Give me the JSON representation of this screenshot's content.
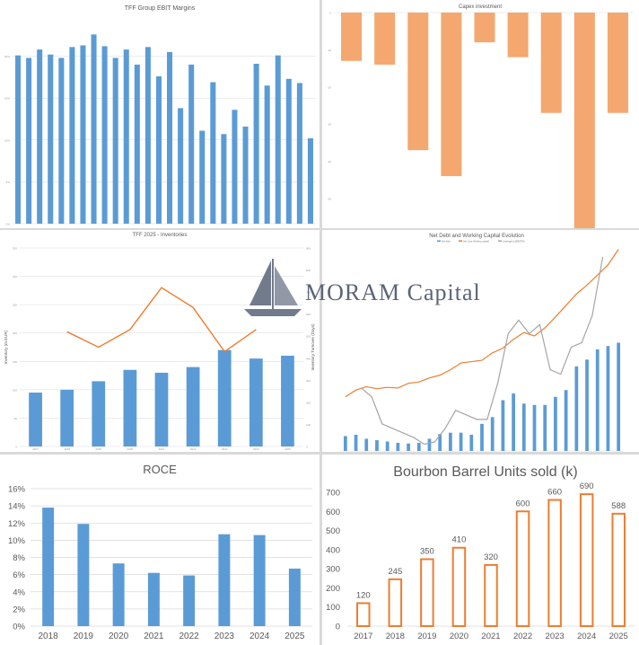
{
  "colors": {
    "blue": "#5b9bd5",
    "orange": "#ed7d31",
    "gray": "#a5a5a5",
    "lightOrange": "#f4a76f",
    "grid": "#d9d9d9",
    "axis": "#595959",
    "watermark": "#5a6478"
  },
  "watermark": {
    "text": "MORAM Capital"
  },
  "chart_data": [
    {
      "id": "ebit",
      "type": "bar",
      "title": "TFF Group EBIT Margins",
      "ylim": [
        0,
        25
      ],
      "yticks": [
        0,
        5,
        10,
        15,
        20
      ],
      "values": [
        20.1,
        19.8,
        20.8,
        20.2,
        19.8,
        21.1,
        21.3,
        22.6,
        21.2,
        19.8,
        20.8,
        19.0,
        21.1,
        17.6,
        20.5,
        13.8,
        19.0,
        11.1,
        16.9,
        10.7,
        13.6,
        11.6,
        19.1,
        16.5,
        20.1,
        17.3,
        16.8,
        10.2
      ]
    },
    {
      "id": "capex",
      "type": "bar",
      "title": "Capex investment",
      "ylim": [
        -58,
        0
      ],
      "yticks": [
        0,
        -10,
        -20,
        -30,
        -40,
        -50
      ],
      "values": [
        -13,
        -14,
        -37,
        -44,
        -8,
        -12,
        -27,
        -58,
        -27
      ]
    },
    {
      "id": "inventories",
      "type": "bar",
      "title": "TFF 2025 - Inventories",
      "ylabel": "Inventory (m EUR)",
      "y2label": "Inventory Turnover (Days)",
      "categories": [
        "2017",
        "2018",
        "2019",
        "2020",
        "2021",
        "2022",
        "2023",
        "2024",
        "2025"
      ],
      "ylim": [
        0,
        350
      ],
      "yticks": [
        0,
        50,
        100,
        150,
        200,
        250,
        300,
        350
      ],
      "y2lim": [
        0,
        900
      ],
      "y2ticks": [
        0,
        100,
        200,
        300,
        400,
        500,
        600,
        700,
        800,
        900
      ],
      "series": [
        {
          "values": [
            95,
            100,
            115,
            135,
            130,
            140,
            170,
            155,
            160
          ]
        },
        {
          "values": [
            null,
            520,
            450,
            530,
            720,
            630,
            430,
            530,
            null
          ]
        }
      ]
    },
    {
      "id": "netdebt",
      "type": "bar",
      "title": "Net Debt and Working Capital Evolution",
      "legend": [
        "Net debt",
        "Net Core Working capital",
        "Leverage (x)/EBITDA"
      ],
      "legend_position": "top",
      "ylim": [
        0,
        300
      ],
      "y2lim": [
        0,
        4.5
      ],
      "series": [
        {
          "name": "Net debt",
          "values": [
            22,
            24,
            18,
            16,
            14,
            12,
            11,
            12,
            18,
            25,
            27,
            27,
            24,
            40,
            50,
            75,
            85,
            70,
            68,
            68,
            80,
            90,
            125,
            135,
            150,
            155,
            160
          ]
        },
        {
          "name": "Net Core Working capital",
          "values": [
            80,
            90,
            95,
            92,
            94,
            93,
            100,
            102,
            108,
            112,
            120,
            130,
            132,
            134,
            145,
            152,
            165,
            175,
            170,
            182,
            198,
            215,
            232,
            245,
            260,
            275,
            298
          ]
        },
        {
          "name": "Leverage (x)/EBITDA",
          "values": [
            1.4,
            1.2,
            0.6,
            0.5,
            0.4,
            0.3,
            0.15,
            0.2,
            0.5,
            0.9,
            0.8,
            0.7,
            0.7,
            1.5,
            2.6,
            2.9,
            2.6,
            2.8,
            1.8,
            1.7,
            2.3,
            2.4,
            3.0,
            4.3
          ]
        }
      ]
    },
    {
      "id": "roce",
      "type": "bar",
      "title": "ROCE",
      "categories": [
        "2018",
        "2019",
        "2020",
        "2021",
        "2022",
        "2023",
        "2024",
        "2025"
      ],
      "values": [
        13.8,
        11.9,
        7.3,
        6.2,
        5.9,
        10.7,
        10.6,
        6.7
      ],
      "ylim": [
        0,
        16
      ],
      "yticks": [
        0,
        2,
        4,
        6,
        8,
        10,
        12,
        14,
        16
      ],
      "ytick_labels": [
        "0%",
        "2%",
        "4%",
        "6%",
        "8%",
        "10%",
        "12%",
        "14%",
        "16%"
      ]
    },
    {
      "id": "bourbon",
      "type": "bar",
      "title": "Bourbon Barrel Units sold (k)",
      "categories": [
        "2017",
        "2018",
        "2019",
        "2020",
        "2021",
        "2022",
        "2023",
        "2024",
        "2025"
      ],
      "values": [
        120,
        245,
        350,
        410,
        320,
        600,
        660,
        690,
        588
      ],
      "ylim": [
        0,
        700
      ],
      "yticks": [
        0,
        100,
        200,
        300,
        400,
        500,
        600,
        700
      ]
    }
  ]
}
